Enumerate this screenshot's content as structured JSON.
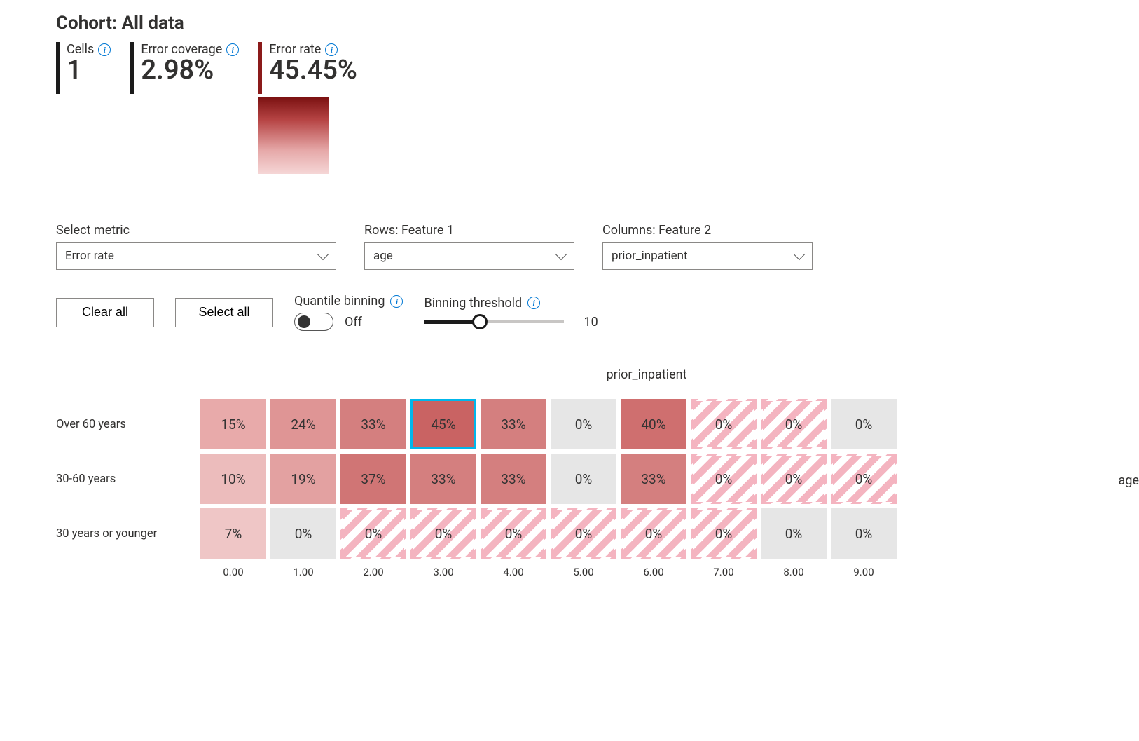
{
  "cohort_prefix": "Cohort: ",
  "cohort_name": "All data",
  "stats": {
    "cells": {
      "label": "Cells",
      "value": "1"
    },
    "error_coverage": {
      "label": "Error coverage",
      "value": "2.98%"
    },
    "error_rate": {
      "label": "Error rate",
      "value": "45.45%"
    }
  },
  "gradient": {
    "top": "#7a1010",
    "bottom": "#f5d6d6"
  },
  "selectors": {
    "metric": {
      "label": "Select metric",
      "value": "Error rate"
    },
    "rows": {
      "label": "Rows: Feature 1",
      "value": "age"
    },
    "columns": {
      "label": "Columns: Feature 2",
      "value": "prior_inpatient"
    }
  },
  "buttons": {
    "clear_all": "Clear all",
    "select_all": "Select all"
  },
  "quantile": {
    "label": "Quantile binning",
    "state_label": "Off",
    "on": false
  },
  "binning": {
    "label": "Binning threshold",
    "value": 10,
    "min": 0,
    "max": 25,
    "fill_pct": 40
  },
  "heatmap": {
    "type": "heatmap",
    "col_axis_title": "prior_inpatient",
    "row_axis_title": "age",
    "row_labels": [
      "Over 60 years",
      "30-60 years",
      "30 years or younger"
    ],
    "col_labels": [
      "0.00",
      "1.00",
      "2.00",
      "3.00",
      "4.00",
      "5.00",
      "6.00",
      "7.00",
      "8.00",
      "9.00"
    ],
    "cells": [
      [
        {
          "text": "15%",
          "bg": "#e8aaaa",
          "striped": false,
          "selected": false
        },
        {
          "text": "24%",
          "bg": "#df9595",
          "striped": false,
          "selected": false
        },
        {
          "text": "33%",
          "bg": "#d47f7f",
          "striped": false,
          "selected": false
        },
        {
          "text": "45%",
          "bg": "#c96363",
          "striped": false,
          "selected": true
        },
        {
          "text": "33%",
          "bg": "#d47f7f",
          "striped": false,
          "selected": false
        },
        {
          "text": "0%",
          "bg": "#e6e6e6",
          "striped": false,
          "selected": false
        },
        {
          "text": "40%",
          "bg": "#cf6f6f",
          "striped": false,
          "selected": false
        },
        {
          "text": "0%",
          "bg": "",
          "striped": true,
          "selected": false
        },
        {
          "text": "0%",
          "bg": "",
          "striped": true,
          "selected": false
        },
        {
          "text": "0%",
          "bg": "#e6e6e6",
          "striped": false,
          "selected": false
        }
      ],
      [
        {
          "text": "10%",
          "bg": "#ecbcbc",
          "striped": false,
          "selected": false
        },
        {
          "text": "19%",
          "bg": "#e3a1a1",
          "striped": false,
          "selected": false
        },
        {
          "text": "37%",
          "bg": "#d07575",
          "striped": false,
          "selected": false
        },
        {
          "text": "33%",
          "bg": "#d47f7f",
          "striped": false,
          "selected": false
        },
        {
          "text": "33%",
          "bg": "#d47f7f",
          "striped": false,
          "selected": false
        },
        {
          "text": "0%",
          "bg": "#e6e6e6",
          "striped": false,
          "selected": false
        },
        {
          "text": "33%",
          "bg": "#d47f7f",
          "striped": false,
          "selected": false
        },
        {
          "text": "0%",
          "bg": "",
          "striped": true,
          "selected": false
        },
        {
          "text": "0%",
          "bg": "",
          "striped": true,
          "selected": false
        },
        {
          "text": "0%",
          "bg": "",
          "striped": true,
          "selected": false
        }
      ],
      [
        {
          "text": "7%",
          "bg": "#efc6c6",
          "striped": false,
          "selected": false
        },
        {
          "text": "0%",
          "bg": "#e6e6e6",
          "striped": false,
          "selected": false
        },
        {
          "text": "0%",
          "bg": "",
          "striped": true,
          "selected": false
        },
        {
          "text": "0%",
          "bg": "",
          "striped": true,
          "selected": false
        },
        {
          "text": "0%",
          "bg": "",
          "striped": true,
          "selected": false
        },
        {
          "text": "0%",
          "bg": "",
          "striped": true,
          "selected": false
        },
        {
          "text": "0%",
          "bg": "",
          "striped": true,
          "selected": false
        },
        {
          "text": "0%",
          "bg": "",
          "striped": true,
          "selected": false
        },
        {
          "text": "0%",
          "bg": "#e6e6e6",
          "striped": false,
          "selected": false
        },
        {
          "text": "0%",
          "bg": "#e6e6e6",
          "striped": false,
          "selected": false
        }
      ]
    ],
    "cell_size": {
      "w": 94,
      "h": 72
    },
    "selected_border_color": "#00b7eb",
    "stripe_color": "#f4b4c0",
    "empty_gray": "#e6e6e6"
  }
}
